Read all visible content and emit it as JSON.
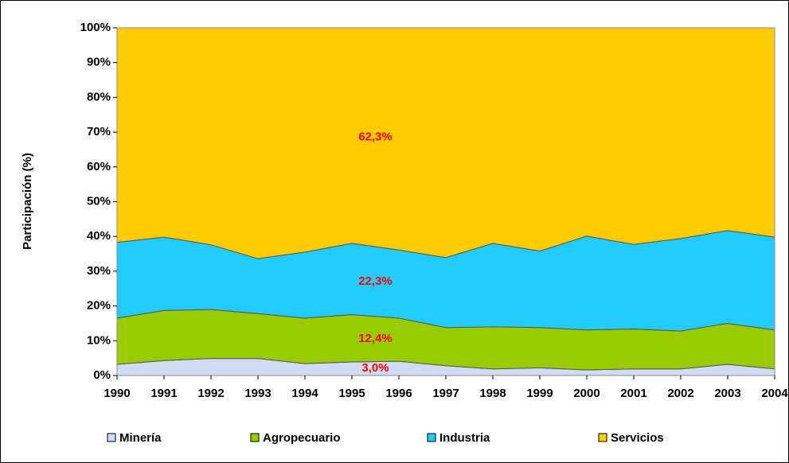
{
  "chart_data": {
    "type": "stacked_area",
    "y_label": "Participación (%)",
    "x": [
      1990,
      1991,
      1992,
      1993,
      1994,
      1995,
      1996,
      1997,
      1998,
      1999,
      2000,
      2001,
      2002,
      2003,
      2004
    ],
    "xlim": [
      1990,
      2004
    ],
    "xticks": [
      1990,
      1991,
      1992,
      1993,
      1994,
      1995,
      1996,
      1997,
      1998,
      1999,
      2000,
      2001,
      2002,
      2003,
      2004
    ],
    "ylim": [
      0,
      100
    ],
    "yticks": [
      {
        "value": 0,
        "label": "0%"
      },
      {
        "value": 10,
        "label": "10%"
      },
      {
        "value": 20,
        "label": "20%"
      },
      {
        "value": 30,
        "label": "30%"
      },
      {
        "value": 40,
        "label": "40%"
      },
      {
        "value": 50,
        "label": "50%"
      },
      {
        "value": 60,
        "label": "60%"
      },
      {
        "value": 70,
        "label": "70%"
      },
      {
        "value": 80,
        "label": "80%"
      },
      {
        "value": 90,
        "label": "90%"
      },
      {
        "value": 100,
        "label": "100%"
      }
    ],
    "legend": "bottom",
    "series": [
      {
        "name": "Minería",
        "color": "#cfdcf2",
        "values": [
          3.2,
          4.3,
          4.9,
          4.9,
          3.4,
          3.9,
          4.1,
          2.8,
          1.9,
          2.2,
          1.6,
          1.9,
          1.9,
          3.2,
          1.9
        ]
      },
      {
        "name": "Agropecuario",
        "color": "#99cc00",
        "values": [
          13.3,
          14.4,
          14.1,
          12.9,
          13.1,
          13.6,
          12.4,
          11.0,
          12.1,
          11.6,
          11.5,
          11.5,
          10.9,
          11.8,
          11.2
        ]
      },
      {
        "name": "Industria",
        "color": "#22ccff",
        "values": [
          21.8,
          21.1,
          18.6,
          15.8,
          19.0,
          20.5,
          19.6,
          20.1,
          24.0,
          22.0,
          27.0,
          24.3,
          26.6,
          26.7,
          26.7
        ]
      },
      {
        "name": "Servicios",
        "color": "#ffcc00",
        "values": [
          61.7,
          60.2,
          62.4,
          66.4,
          64.5,
          62.0,
          63.9,
          66.1,
          62.0,
          64.2,
          59.9,
          62.3,
          60.6,
          58.3,
          60.2
        ]
      }
    ],
    "annotations": [
      "3,0%",
      "12,4%",
      "22,3%",
      "62,3%"
    ],
    "annotation_color": "#ff0000"
  }
}
